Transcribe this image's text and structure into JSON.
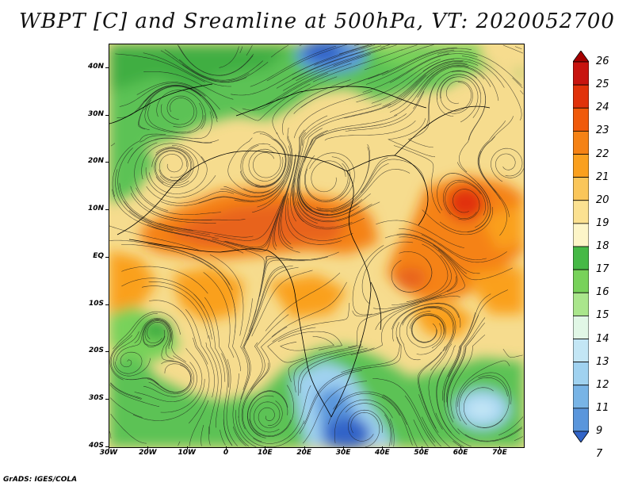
{
  "title": "WBPT [C] and Sreamline at 500hPa, VT: 2020052700",
  "credit": "GrADS: IGES/COLA",
  "map": {
    "lat_labels": [
      "40N",
      "30N",
      "20N",
      "10N",
      "EQ",
      "10S",
      "20S",
      "30S",
      "40S"
    ],
    "lon_labels": [
      "30W",
      "20W",
      "10W",
      "0",
      "10E",
      "20E",
      "30E",
      "40E",
      "50E",
      "60E",
      "70E"
    ],
    "lat_range": [
      -40,
      45
    ],
    "lon_range": [
      -30,
      76
    ]
  },
  "legend": {
    "levels": [
      "26",
      "25",
      "24",
      "23",
      "22",
      "21",
      "20",
      "19",
      "18",
      "17",
      "16",
      "15",
      "14",
      "13",
      "12",
      "11",
      "9",
      "7"
    ],
    "colors": [
      "#a50000",
      "#c8140f",
      "#e1320a",
      "#f05a0a",
      "#f58214",
      "#faa01e",
      "#fac65a",
      "#fbe191",
      "#fdf5c8",
      "#46b946",
      "#78d25a",
      "#aae68c",
      "#e1f7e6",
      "#c3e6f5",
      "#a0d2f0",
      "#78b4e6",
      "#5a96dc",
      "#3264c8"
    ]
  }
}
